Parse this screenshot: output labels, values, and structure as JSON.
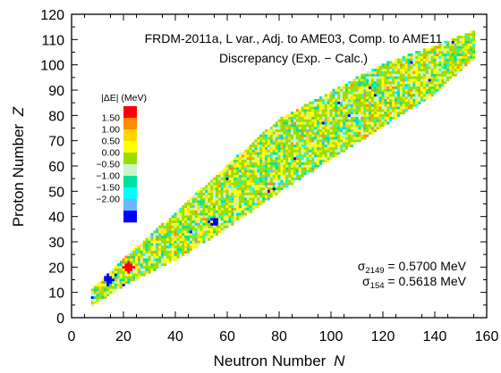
{
  "chart_data": {
    "type": "heatmap",
    "title_line1": "FRDM-2011a, L var., Adj. to AME03, Comp. to AME11",
    "title_line2": "Discrepancy (Exp. − Calc.)",
    "xlabel": "Neutron Number",
    "xlabel_var": "N",
    "ylabel": "Proton Number",
    "ylabel_var": "Z",
    "xlim": [
      0,
      160
    ],
    "ylim": [
      0,
      120
    ],
    "xticks": [
      0,
      20,
      40,
      60,
      80,
      100,
      120,
      140,
      160
    ],
    "yticks": [
      0,
      10,
      20,
      30,
      40,
      50,
      60,
      70,
      80,
      90,
      100,
      110,
      120
    ],
    "grid": false,
    "legend": {
      "title": "|ΔE| (MeV)",
      "placement": "left-inside",
      "labels": [
        "1.50",
        "1.00",
        "0.50",
        "0.00",
        "−0.50",
        "−1.00",
        "−1.50",
        "−2.00"
      ],
      "colors": [
        "#ff0000",
        "#ff8c00",
        "#ffd700",
        "#ffff00",
        "#99dd00",
        "#ccf5cc",
        "#00e0a0",
        "#00ffff",
        "#6ab8ff",
        "#0000ff"
      ]
    },
    "annotations": [
      {
        "sigma": "σ",
        "sub": "2149",
        "text": " = 0.5700 MeV"
      },
      {
        "sigma": "σ",
        "sub": "154",
        "text": " = 0.5618 MeV"
      }
    ],
    "approx_band": {
      "note_values_in_data_units": true,
      "centerline": [
        [
          8,
          8
        ],
        [
          20,
          18
        ],
        [
          40,
          32
        ],
        [
          60,
          48
        ],
        [
          80,
          64
        ],
        [
          100,
          76
        ],
        [
          120,
          88
        ],
        [
          140,
          98
        ],
        [
          155,
          108
        ]
      ],
      "halfwidth": [
        [
          8,
          3
        ],
        [
          20,
          5
        ],
        [
          40,
          9
        ],
        [
          60,
          12
        ],
        [
          80,
          14
        ],
        [
          100,
          13
        ],
        [
          120,
          12
        ],
        [
          140,
          9
        ],
        [
          155,
          5
        ]
      ],
      "color_mix": [
        {
          "color": "#99dd00",
          "weight": 0.4
        },
        {
          "color": "#ffff00",
          "weight": 0.22
        },
        {
          "color": "#ccf5cc",
          "weight": 0.14
        },
        {
          "color": "#00e0a0",
          "weight": 0.1
        },
        {
          "color": "#ffd700",
          "weight": 0.06
        },
        {
          "color": "#00ffff",
          "weight": 0.04
        },
        {
          "color": "#ff8c00",
          "weight": 0.02
        },
        {
          "color": "#6ab8ff",
          "weight": 0.015
        },
        {
          "color": "#0000ff",
          "weight": 0.005
        }
      ],
      "hotspots": [
        {
          "n": 22,
          "z": 20,
          "color": "#ff0000"
        },
        {
          "n": 14,
          "z": 15,
          "color": "#0000ff"
        },
        {
          "n": 55,
          "z": 38,
          "color": "#0000ff"
        },
        {
          "n": 20,
          "z": 24,
          "color": "#ff8c00"
        }
      ]
    }
  }
}
